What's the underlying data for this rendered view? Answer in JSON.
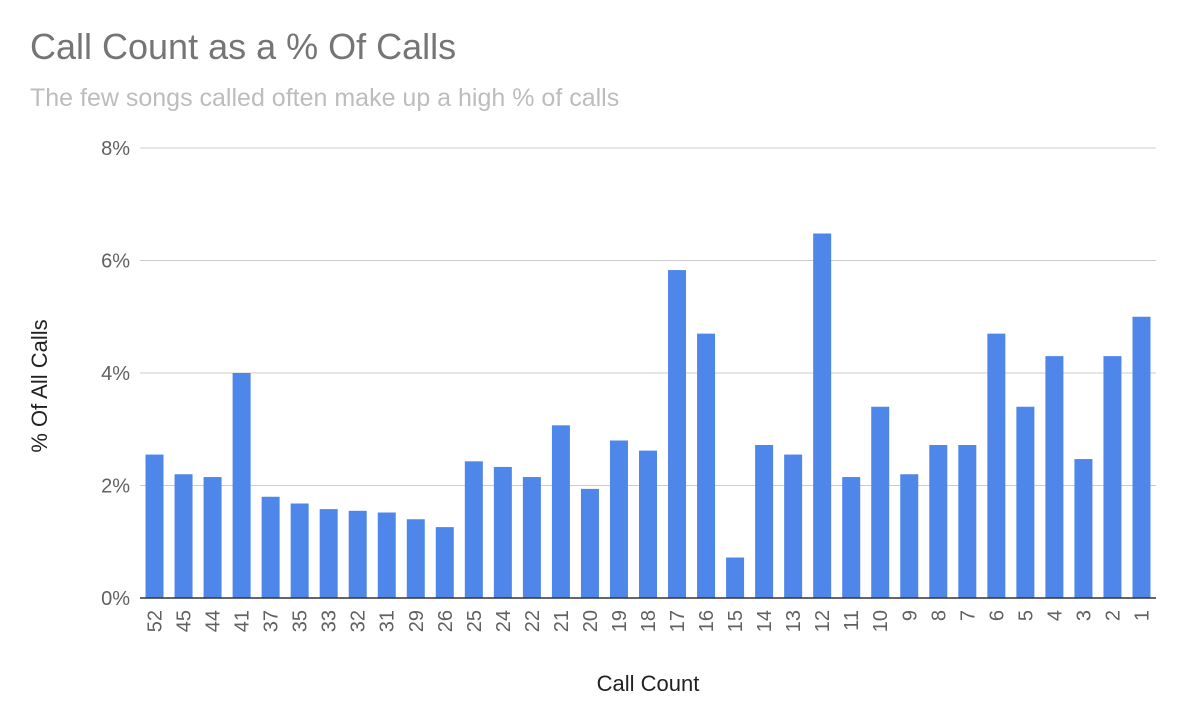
{
  "chart_data": {
    "type": "bar",
    "title": "Call Count as a % Of Calls",
    "subtitle": "The few songs called often make up a high % of calls",
    "xlabel": "Call Count",
    "ylabel": "% Of All Calls",
    "ylim": [
      0,
      8
    ],
    "yticks": [
      "0%",
      "2%",
      "4%",
      "6%",
      "8%"
    ],
    "grid": true,
    "bar_color": "#4f86ea",
    "categories": [
      "52",
      "45",
      "44",
      "41",
      "37",
      "35",
      "33",
      "32",
      "31",
      "29",
      "26",
      "25",
      "24",
      "22",
      "21",
      "20",
      "19",
      "18",
      "17",
      "16",
      "15",
      "14",
      "13",
      "12",
      "11",
      "10",
      "9",
      "8",
      "7",
      "6",
      "5",
      "4",
      "3",
      "2",
      "1"
    ],
    "values": [
      2.55,
      2.2,
      2.15,
      4.0,
      1.8,
      1.68,
      1.58,
      1.55,
      1.52,
      1.4,
      1.26,
      2.43,
      2.33,
      2.15,
      3.07,
      1.94,
      2.8,
      2.62,
      5.83,
      4.7,
      0.72,
      2.72,
      2.55,
      6.48,
      2.15,
      3.4,
      2.2,
      2.72,
      2.72,
      4.7,
      3.4,
      4.3,
      2.47,
      4.3,
      5.0
    ]
  }
}
